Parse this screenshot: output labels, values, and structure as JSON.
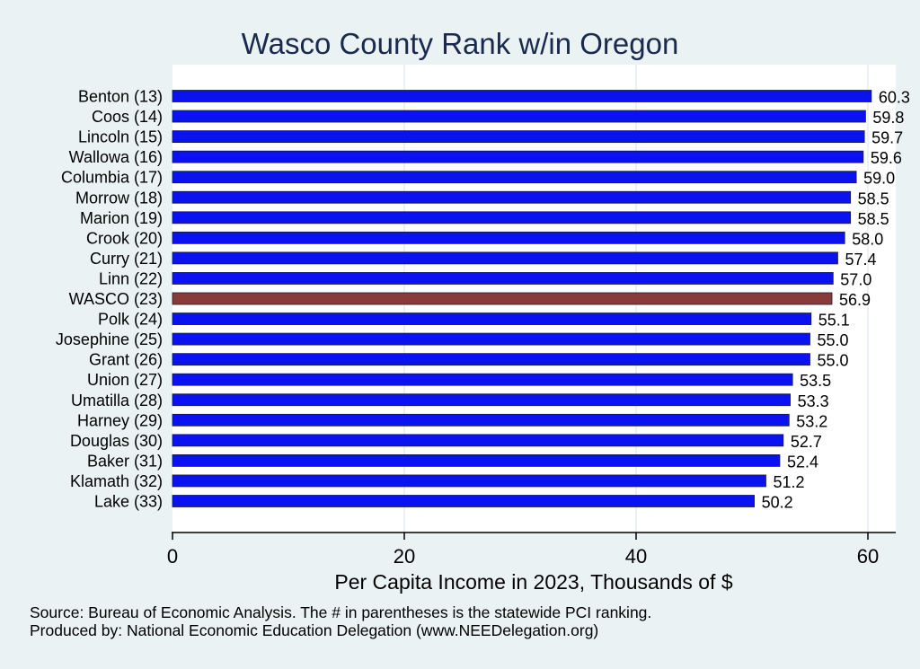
{
  "chart_data": {
    "type": "bar",
    "orientation": "horizontal",
    "title": "Wasco County Rank w/in Oregon",
    "xlabel": "Per Capita Income in 2023, Thousands of $",
    "xlim": [
      0,
      62.5
    ],
    "xticks": [
      0,
      20,
      40,
      60
    ],
    "grid": true,
    "categories": [
      "Benton (13)",
      "Coos (14)",
      "Lincoln (15)",
      "Wallowa (16)",
      "Columbia (17)",
      "Morrow (18)",
      "Marion (19)",
      "Crook (20)",
      "Curry (21)",
      "Linn (22)",
      "WASCO (23)",
      "Polk (24)",
      "Josephine (25)",
      "Grant (26)",
      "Union (27)",
      "Umatilla (28)",
      "Harney (29)",
      "Douglas (30)",
      "Baker (31)",
      "Klamath (32)",
      "Lake (33)"
    ],
    "values": [
      60.3,
      59.8,
      59.7,
      59.6,
      59.0,
      58.5,
      58.5,
      58.0,
      57.4,
      57.0,
      56.9,
      55.1,
      55.0,
      55.0,
      53.5,
      53.3,
      53.2,
      52.7,
      52.4,
      51.2,
      50.2
    ],
    "value_labels": [
      "60.3",
      "59.8",
      "59.7",
      "59.6",
      "59.0",
      "58.5",
      "58.5",
      "58.0",
      "57.4",
      "57.0",
      "56.9",
      "55.1",
      "55.0",
      "55.0",
      "53.5",
      "53.3",
      "53.2",
      "52.7",
      "52.4",
      "51.2",
      "50.2"
    ],
    "highlight": "WASCO (23)",
    "colors": {
      "bar": "#0a12f0",
      "highlight": "#8b3a3a",
      "title": "#1a2a4f",
      "background": "#eaf2f3",
      "plot": "#ffffff"
    }
  },
  "notes": {
    "source": "Source: Bureau of Economic Analysis. The # in parentheses is the statewide PCI ranking.",
    "produced": "Produced by: National Economic Education Delegation (www.NEEDelegation.org)"
  }
}
